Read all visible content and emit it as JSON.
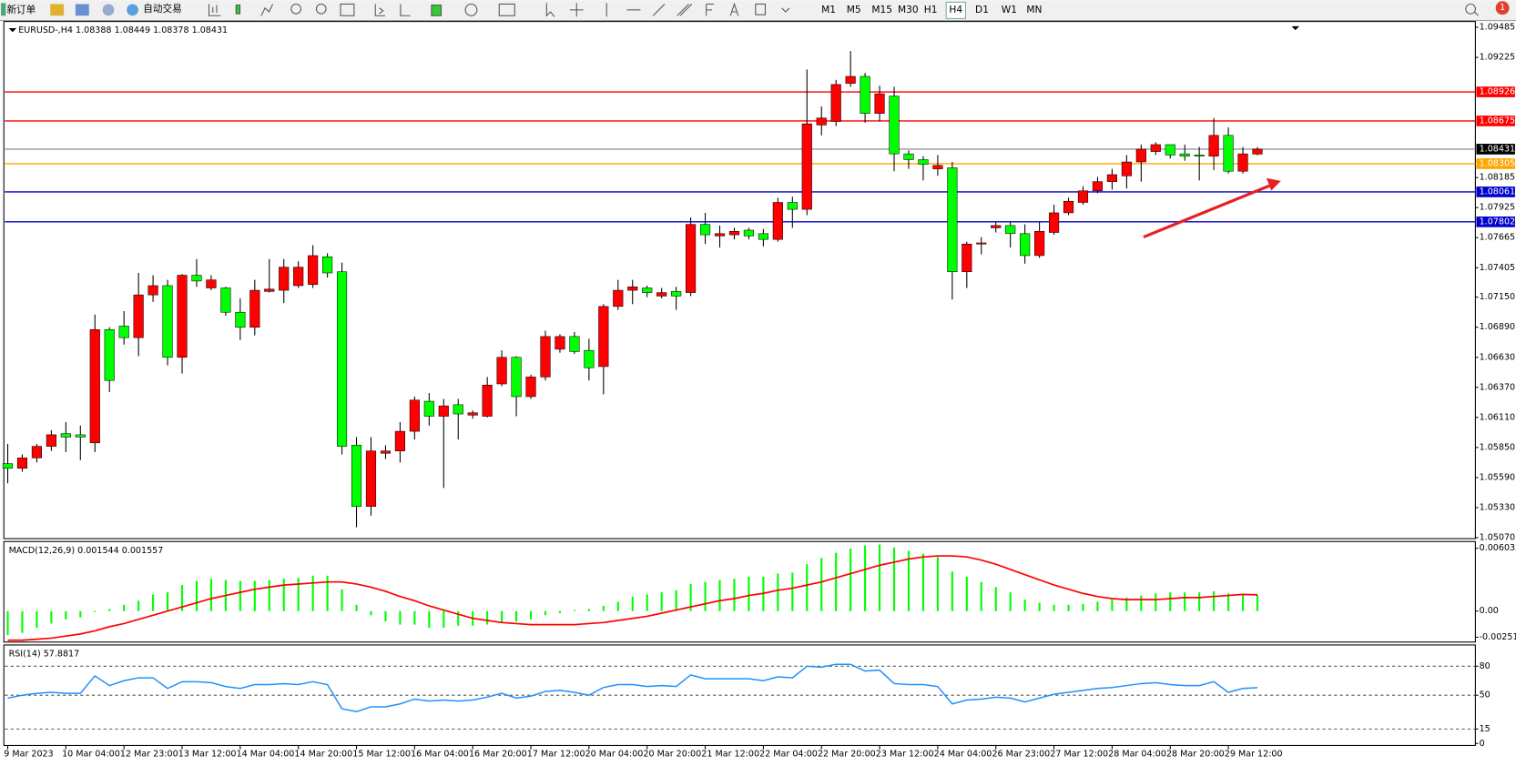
{
  "toolbar": {
    "new_order": "新订单",
    "auto_trading": "自动交易",
    "timeframes": [
      "M1",
      "M5",
      "M15",
      "M30",
      "H1",
      "H4",
      "D1",
      "W1",
      "MN"
    ],
    "active_timeframe": 5,
    "notifications": "1"
  },
  "chart_data": [
    {
      "type": "candlestick",
      "title": "EURUSD-,H4",
      "up_color": "#ff0000",
      "down_color": "#00ff00",
      "categories": [
        "9 Mar 2023",
        null,
        null,
        null,
        "10 Mar 04:00",
        null,
        null,
        null,
        "12 Mar 23:00",
        null,
        null,
        null,
        "13 Mar 12:00",
        null,
        null,
        null,
        "14 Mar 04:00",
        null,
        null,
        null,
        "14 Mar 20:00",
        null,
        null,
        null,
        "15 Mar 12:00",
        null,
        null,
        null,
        "16 Mar 04:00",
        null,
        null,
        null,
        "16 Mar 20:00",
        null,
        null,
        null,
        "17 Mar 12:00",
        null,
        null,
        null,
        "20 Mar 04:00",
        null,
        null,
        null,
        "20 Mar 20:00",
        null,
        null,
        null,
        "21 Mar 12:00",
        null,
        null,
        null,
        "22 Mar 04:00",
        null,
        null,
        null,
        "22 Mar 20:00",
        null,
        null,
        null,
        "23 Mar 12:00",
        null,
        null,
        null,
        "24 Mar 04:00",
        null,
        null,
        null,
        "26 Mar 23:00",
        null,
        null,
        null,
        "27 Mar 12:00",
        null,
        null,
        null,
        "28 Mar 04:00",
        null,
        null,
        null,
        "28 Mar 20:00",
        null,
        null,
        null,
        "29 Mar 12:00",
        null,
        null
      ],
      "open": [
        1.0571,
        1.0567,
        1.0576,
        1.0586,
        1.0597,
        1.0596,
        1.0589,
        1.0687,
        1.069,
        1.068,
        1.0717,
        1.0725,
        1.0663,
        1.0734,
        1.0723,
        1.0723,
        1.0702,
        1.0689,
        1.072,
        1.0721,
        1.0725,
        1.0726,
        1.075,
        1.0737,
        1.0587,
        1.0534,
        1.058,
        1.0582,
        1.0599,
        1.0625,
        1.0612,
        1.0622,
        1.0613,
        1.0612,
        1.064,
        1.0663,
        1.0629,
        1.0646,
        1.067,
        1.0681,
        1.0669,
        1.0655,
        1.0707,
        1.0721,
        1.0723,
        1.0716,
        1.072,
        1.0719,
        1.0778,
        1.0768,
        1.0769,
        1.0773,
        1.077,
        1.0765,
        1.0797,
        1.0791,
        1.0864,
        1.0867,
        1.09,
        1.0906,
        1.0874,
        1.0889,
        1.0839,
        1.0834,
        1.0826,
        1.0827,
        1.0737,
        1.0761,
        1.0775,
        1.0777,
        1.077,
        1.0751,
        1.0771,
        1.0788,
        1.0797,
        1.0807,
        1.0815,
        1.082,
        1.0832,
        1.0841,
        1.0847,
        1.0839,
        1.0838,
        1.0837,
        1.0855,
        1.0824,
        1.08388
      ],
      "high": [
        1.0588,
        1.0579,
        1.0588,
        1.06,
        1.0607,
        1.0604,
        1.07,
        1.0689,
        1.0703,
        1.0736,
        1.0734,
        1.073,
        1.0735,
        1.0748,
        1.0734,
        1.0724,
        1.0714,
        1.073,
        1.0748,
        1.0748,
        1.0746,
        1.076,
        1.0753,
        1.0745,
        1.0594,
        1.0594,
        1.0587,
        1.0607,
        1.0629,
        1.0632,
        1.0627,
        1.0627,
        1.0617,
        1.0646,
        1.0669,
        1.0664,
        1.0648,
        1.0686,
        1.0683,
        1.0685,
        1.0679,
        1.0709,
        1.073,
        1.073,
        1.0725,
        1.0723,
        1.0724,
        1.0784,
        1.0788,
        1.0777,
        1.0775,
        1.0775,
        1.0774,
        1.0801,
        1.0802,
        1.0912,
        1.088,
        1.0903,
        1.0928,
        1.0909,
        1.0898,
        1.0897,
        1.0842,
        1.0837,
        1.0838,
        1.0832,
        1.0763,
        1.0767,
        1.078,
        1.078,
        1.0778,
        1.078,
        1.0795,
        1.0801,
        1.0811,
        1.0819,
        1.0826,
        1.0838,
        1.0847,
        1.0849,
        1.0847,
        1.0847,
        1.0845,
        1.087,
        1.0862,
        1.0845,
        1.08449
      ],
      "low": [
        1.0554,
        1.0564,
        1.0572,
        1.0582,
        1.0581,
        1.0574,
        1.0581,
        1.0633,
        1.0674,
        1.0664,
        1.0711,
        1.0656,
        1.0649,
        1.0724,
        1.0721,
        1.0699,
        1.0678,
        1.0682,
        1.0719,
        1.071,
        1.0723,
        1.0723,
        1.0732,
        1.0579,
        1.0516,
        1.0526,
        1.0575,
        1.0572,
        1.0592,
        1.0604,
        1.055,
        1.0592,
        1.061,
        1.0611,
        1.0638,
        1.0612,
        1.0627,
        1.0643,
        1.0667,
        1.0666,
        1.0643,
        1.0631,
        1.0704,
        1.0709,
        1.0715,
        1.0714,
        1.0704,
        1.0716,
        1.0761,
        1.0758,
        1.0765,
        1.0765,
        1.0759,
        1.0763,
        1.0775,
        1.0786,
        1.0855,
        1.0863,
        1.0897,
        1.0866,
        1.0867,
        1.0824,
        1.0826,
        1.0816,
        1.082,
        1.0713,
        1.0723,
        1.0752,
        1.0771,
        1.0758,
        1.0744,
        1.0749,
        1.0769,
        1.0786,
        1.0795,
        1.0805,
        1.0808,
        1.0809,
        1.0815,
        1.0838,
        1.0835,
        1.0833,
        1.0816,
        1.0825,
        1.0822,
        1.0822,
        1.08378
      ],
      "close": [
        1.0567,
        1.0576,
        1.0586,
        1.0596,
        1.0594,
        1.0594,
        1.0687,
        1.0643,
        1.068,
        1.0717,
        1.0725,
        1.0663,
        1.0734,
        1.0729,
        1.073,
        1.0702,
        1.0689,
        1.0721,
        1.0722,
        1.0741,
        1.0741,
        1.0751,
        1.0736,
        1.0586,
        1.0534,
        1.0582,
        1.0582,
        1.0599,
        1.0626,
        1.0612,
        1.0621,
        1.0614,
        1.0615,
        1.0639,
        1.0663,
        1.0629,
        1.0646,
        1.0681,
        1.0681,
        1.0668,
        1.0654,
        1.0707,
        1.0721,
        1.0724,
        1.0719,
        1.0719,
        1.0716,
        1.0778,
        1.0769,
        1.077,
        1.0772,
        1.0768,
        1.0765,
        1.0797,
        1.0791,
        1.0865,
        1.087,
        1.0899,
        1.0906,
        1.0874,
        1.0891,
        1.0839,
        1.0834,
        1.083,
        1.0829,
        1.0737,
        1.0761,
        1.0762,
        1.0777,
        1.077,
        1.0751,
        1.0772,
        1.0788,
        1.0798,
        1.0807,
        1.0815,
        1.0821,
        1.0832,
        1.0843,
        1.0847,
        1.0838,
        1.0837,
        1.0837,
        1.0855,
        1.0824,
        1.0839,
        1.08431
      ],
      "ylim": [
        1.0507,
        1.09485
      ],
      "yticks": [
        1.09485,
        1.09225,
        1.08185,
        1.07925,
        1.07665,
        1.07405,
        {
          "value": 1.0715,
          "label": "1.07150"
        },
        {
          "value": 1.0689,
          "label": "1.06890"
        },
        {
          "value": 1.0663,
          "label": "1.06630"
        },
        {
          "value": 1.0637,
          "label": "1.06370"
        },
        {
          "value": 1.0611,
          "label": "1.06110"
        },
        {
          "value": 1.0585,
          "label": "1.05850"
        },
        {
          "value": 1.0559,
          "label": "1.05590"
        },
        {
          "value": 1.0533,
          "label": "1.05330"
        },
        {
          "value": 1.0507,
          "label": "1.05070"
        }
      ],
      "current_color": "#808080",
      "hlines": [
        {
          "value": 1.08926,
          "color": "#ff0000"
        },
        {
          "value": 1.08675,
          "color": "#ff0000"
        },
        {
          "value": 1.08305,
          "color": "#ffa500"
        },
        {
          "value": 1.08061,
          "color": "#0000cd"
        },
        {
          "value": 1.07802,
          "color": "#0000cd"
        }
      ]
    },
    {
      "type": "macd",
      "title": "MACD(12,26,9)",
      "series": [
        {
          "style": "bar",
          "color": "#00ff00",
          "values": [
            -0.0023,
            -0.0021,
            -0.0016,
            -0.0012,
            -0.0008,
            -0.0006,
            -0.0001,
            0.0002,
            0.0006,
            0.001,
            0.0016,
            0.0018,
            0.0025,
            0.0029,
            0.0031,
            0.003,
            0.0029,
            0.0029,
            0.003,
            0.0031,
            0.0032,
            0.0034,
            0.0034,
            0.0021,
            0.0006,
            -0.0004,
            -0.001,
            -0.0013,
            -0.0013,
            -0.0016,
            -0.0016,
            -0.0014,
            -0.0014,
            -0.0013,
            -0.0011,
            -0.001,
            -0.0008,
            -0.0004,
            -0.0002,
            0.0001,
            0.0002,
            0.0005,
            0.0009,
            0.0014,
            0.0016,
            0.0018,
            0.002,
            0.0026,
            0.0028,
            0.003,
            0.0031,
            0.0033,
            0.0033,
            0.0036,
            0.0037,
            0.0045,
            0.0051,
            0.0056,
            0.006,
            0.0063,
            0.0064,
            0.0061,
            0.0058,
            0.0055,
            0.0052,
            0.0038,
            0.0033,
            0.0028,
            0.0023,
            0.0018,
            0.0011,
            0.0008,
            0.0006,
            0.0006,
            0.0007,
            0.0009,
            0.0011,
            0.0013,
            0.0015,
            0.0017,
            0.0018,
            0.0018,
            0.0018,
            0.0019,
            0.0017,
            0.0016,
            0.001544
          ]
        },
        {
          "style": "line",
          "color": "#ff0000",
          "values": [
            -0.0028,
            -0.0028,
            -0.0027,
            -0.0026,
            -0.0024,
            -0.0022,
            -0.0019,
            -0.0015,
            -0.0012,
            -0.0008,
            -0.0004,
            0,
            0.0004,
            0.0008,
            0.0012,
            0.0015,
            0.0018,
            0.0021,
            0.0023,
            0.0025,
            0.0026,
            0.0027,
            0.0028,
            0.0028,
            0.0026,
            0.0023,
            0.0019,
            0.0014,
            0.001,
            0.0005,
            0.0001,
            -0.0003,
            -0.0007,
            -0.0009,
            -0.0011,
            -0.0012,
            -0.0013,
            -0.0013,
            -0.0013,
            -0.0013,
            -0.0012,
            -0.0011,
            -0.0009,
            -0.0007,
            -0.0005,
            -0.0002,
            0.0001,
            0.0004,
            0.0007,
            0.001,
            0.0012,
            0.0015,
            0.0017,
            0.002,
            0.0022,
            0.0025,
            0.0028,
            0.0032,
            0.0036,
            0.004,
            0.0044,
            0.0047,
            0.005,
            0.0052,
            0.0053,
            0.0053,
            0.0052,
            0.0049,
            0.0045,
            0.004,
            0.0035,
            0.003,
            0.0025,
            0.0021,
            0.0017,
            0.0014,
            0.0012,
            0.0011,
            0.0011,
            0.0011,
            0.0012,
            0.0013,
            0.0013,
            0.0014,
            0.0015,
            0.0016,
            0.001557
          ]
        }
      ],
      "ylim": [
        -0.002511,
        0.006032
      ],
      "yticks": [
        0.006032,
        {
          "value": 0,
          "label": "0.00"
        },
        -0.002511
      ]
    },
    {
      "type": "line",
      "title": "RSI(14)",
      "color": "#1e90ff",
      "values": [
        47,
        50,
        52,
        53,
        52,
        52,
        70,
        60,
        65,
        68,
        68,
        57,
        64,
        64,
        63,
        59,
        57,
        61,
        61,
        62,
        61,
        64,
        61,
        36,
        33,
        38,
        38,
        41,
        46,
        44,
        45,
        44,
        45,
        48,
        52,
        47,
        49,
        54,
        55,
        53,
        50,
        58,
        61,
        61,
        59,
        60,
        59,
        71,
        67,
        67,
        67,
        67,
        65,
        69,
        68,
        80,
        79,
        82,
        82,
        75,
        76,
        62,
        61,
        61,
        59,
        41,
        45,
        46,
        48,
        47,
        43,
        47,
        51,
        53,
        55,
        57,
        58,
        60,
        62,
        63,
        61,
        60,
        60,
        64,
        53,
        57,
        57.8817
      ],
      "ylim": [
        0,
        100
      ],
      "yticks": [
        80,
        50,
        15,
        0
      ]
    }
  ]
}
